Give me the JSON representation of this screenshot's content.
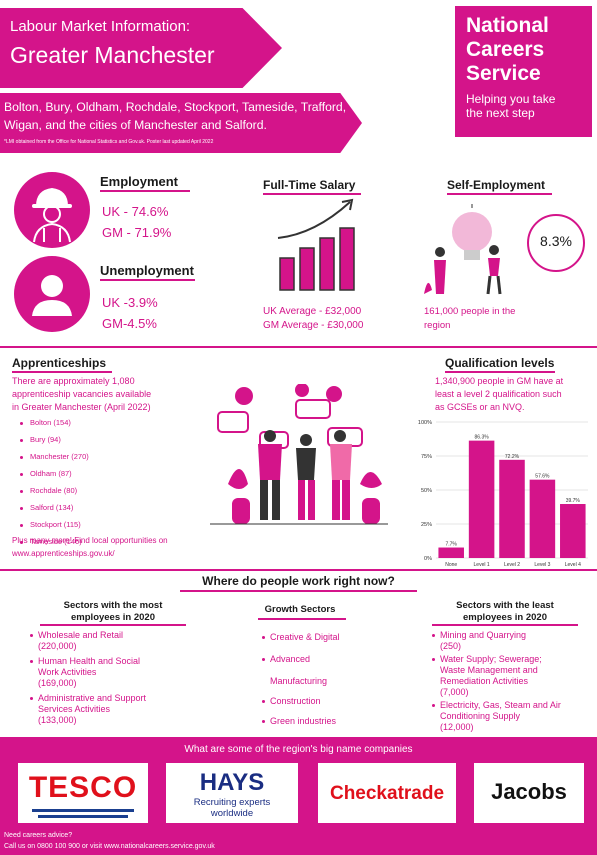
{
  "header": {
    "subtitle": "Labour Market Information:",
    "title": "Greater Manchester",
    "areas_line1": "Bolton, Bury, Oldham, Rochdale, Stockport, Tameside, Trafford,",
    "areas_line2": "Wigan, and the cities of Manchester and Salford.",
    "source_note": "*LMI obtained from the Office for National Statistics and Gov.uk. Poster last updated April 2022"
  },
  "brand": {
    "line1": "National",
    "line2": "Careers",
    "line3": "Service",
    "tag1": "Helping you take",
    "tag2": "the next step"
  },
  "employment": {
    "title": "Employment",
    "uk": "UK - 74.6%",
    "gm": "GM - 71.9%"
  },
  "unemployment": {
    "title": "Unemployment",
    "uk": "UK -3.9%",
    "gm": "GM-4.5%"
  },
  "salary": {
    "title": "Full-Time Salary",
    "uk": "UK Average - £32,000",
    "gm": "GM Average - £30,000"
  },
  "self_employment": {
    "title": "Self-Employment",
    "pct": "8.3%",
    "text1": "161,000 people in the",
    "text2": "region"
  },
  "apprenticeships": {
    "title": "Apprenticeships",
    "intro1": "There are approximately 1,080",
    "intro2": "apprenticeship vacancies available",
    "intro3": "in Greater Manchester (April 2022)",
    "items": [
      "Bolton (154)",
      "Bury (94)",
      "Manchester (270)",
      "Oldham (87)",
      "Rochdale (80)",
      "Salford (134)",
      "Stockport (115)",
      "Tameside (146)"
    ],
    "more1": "Plus many more! Find local opportunities on",
    "more2": "www.apprenticeships.gov.uk/"
  },
  "qualifications": {
    "title": "Qualification levels",
    "text1": "1,340,900 people in GM have at",
    "text2": "least a level 2 qualification such",
    "text3": "as GCSEs or an NVQ."
  },
  "chart_data": {
    "type": "bar",
    "categories": [
      "None",
      "Level 1",
      "Level 2",
      "Level 3",
      "Level 4"
    ],
    "values": [
      7.7,
      86.3,
      72.2,
      57.6,
      39.7
    ],
    "data_labels": [
      "7.7%",
      "86.3%",
      "72.2%",
      "57.6%",
      "39.7%"
    ],
    "ylim": [
      0,
      100
    ],
    "y_ticks": [
      "0%",
      "25%",
      "50%",
      "75%",
      "100%"
    ],
    "grid": true,
    "color": "#d4148a"
  },
  "where": {
    "title": "Where do people work right now?"
  },
  "most": {
    "title1": "Sectors with the most",
    "title2": "employees in 2020",
    "items": [
      [
        "Wholesale and Retail",
        "(220,000)"
      ],
      [
        "Human Health and Social",
        "Work Activities",
        "(169,000)"
      ],
      [
        "Administrative and Support",
        "Services Activities",
        "(133,000)"
      ]
    ]
  },
  "growth": {
    "title": "Growth Sectors",
    "items": [
      "Creative & Digital",
      "Advanced",
      "Manufacturing",
      "Construction",
      "Green industries"
    ]
  },
  "least": {
    "title1": "Sectors with the least",
    "title2": "employees in 2020",
    "items": [
      [
        "Mining and Quarrying",
        "(250)"
      ],
      [
        "Water Supply; Sewerage;",
        "Waste Management and",
        "Remediation Activities",
        "(7,000)"
      ],
      [
        "Electricity, Gas, Steam and Air",
        "Conditioning Supply",
        "(12,000)"
      ]
    ]
  },
  "footer": {
    "title": "What are some of the region's big name companies",
    "tesco": "TESCO",
    "hays": "HAYS",
    "hays_sub1": "Recruiting experts",
    "hays_sub2": "worldwide",
    "checkatrade": "Checkatrade",
    "jacobs": "Jacobs",
    "advice1": "Need careers advice?",
    "advice2": "Call us on 0800 100 900 or visit www.nationalcareers.service.gov.uk"
  }
}
